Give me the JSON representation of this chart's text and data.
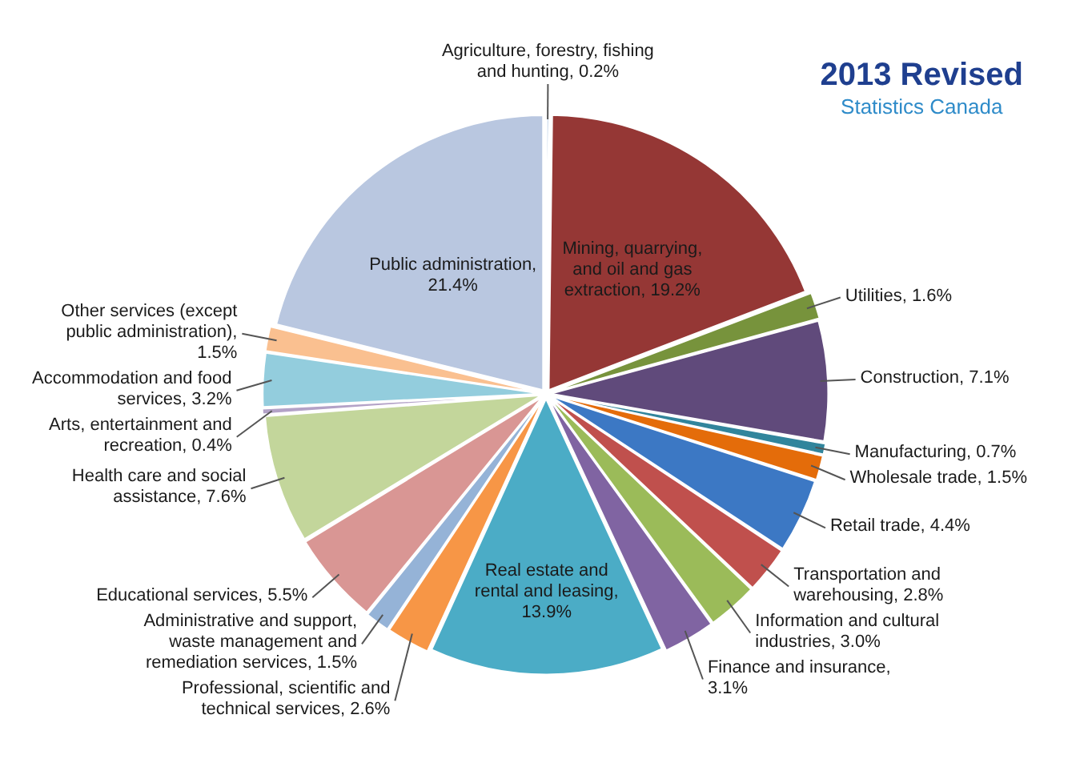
{
  "chart_data": {
    "type": "pie",
    "title": "2013 Revised",
    "subtitle": "Statistics Canada",
    "categories": [
      "Agriculture, forestry, fishing and hunting",
      "Mining, quarrying, and oil and gas extraction",
      "Utilities",
      "Construction",
      "Manufacturing",
      "Wholesale trade",
      "Retail trade",
      "Transportation and warehousing",
      "Information and cultural industries",
      "Finance and insurance",
      "Real estate and rental and leasing",
      "Professional, scientific and technical services",
      "Administrative and support, waste management and remediation services",
      "Educational services",
      "Health care and social assistance",
      "Arts, entertainment and recreation",
      "Accommodation and food services",
      "Other services (except public administration)",
      "Public administration"
    ],
    "values": [
      0.2,
      19.2,
      1.6,
      7.1,
      0.7,
      1.5,
      4.4,
      2.8,
      3.0,
      3.1,
      13.9,
      2.6,
      1.5,
      5.5,
      7.6,
      0.4,
      3.2,
      1.5,
      21.4
    ],
    "value_labels": [
      ", 0.2%",
      ", 19.2%",
      ", 1.6%",
      ", 7.1%",
      ", 0.7%",
      ", 1.5%",
      ", 4.4%",
      ", 2.8%",
      ", 3.0%",
      ", 3.1%",
      ", 13.9%",
      ", 2.6%",
      ", 1.5%",
      ", 5.5%",
      ", 7.6%",
      ", 0.4%",
      ", 3.2%",
      ", 1.5%",
      ", 21.4%"
    ],
    "colors": [
      "#4f81bd",
      "#953735",
      "#77933c",
      "#604a7b",
      "#31859c",
      "#e46c0a",
      "#3c78c4",
      "#c0504d",
      "#9bbb59",
      "#8064a2",
      "#4bacc6",
      "#f79646",
      "#95b3d7",
      "#d99694",
      "#c3d69b",
      "#b3a2c7",
      "#93cddd",
      "#fac090",
      "#b9c7e0"
    ],
    "legend": false
  }
}
